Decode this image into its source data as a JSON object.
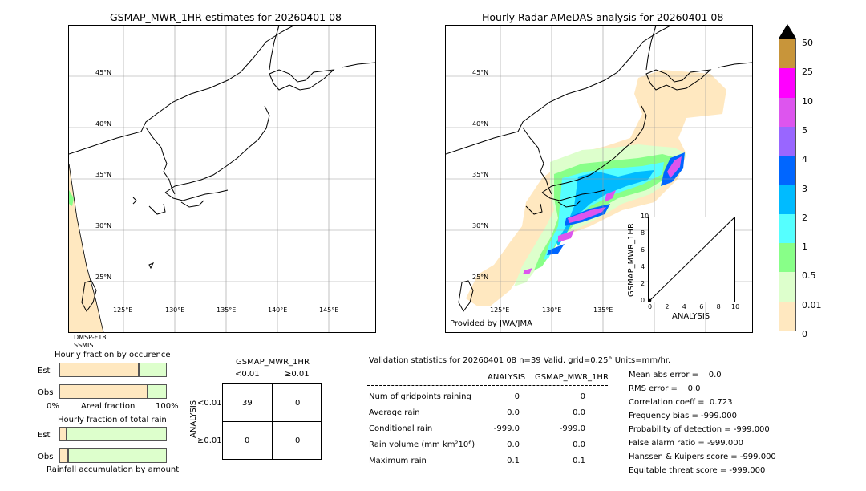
{
  "left_map": {
    "title": "GSMAP_MWR_1HR estimates for 20260401 08",
    "lat_labels": [
      "45°N",
      "40°N",
      "35°N",
      "30°N",
      "25°N"
    ],
    "lon_labels": [
      "125°E",
      "130°E",
      "135°E",
      "140°E",
      "145°E"
    ],
    "sensor_line1": "DMSP-F18",
    "sensor_line2": "SSMIS"
  },
  "right_map": {
    "title": "Hourly Radar-AMeDAS analysis for 20260401 08",
    "lat_labels": [
      "45°N",
      "40°N",
      "35°N",
      "30°N",
      "25°N"
    ],
    "lon_labels": [
      "125°E",
      "130°E",
      "135°E"
    ],
    "credit": "Provided by JWA/JMA"
  },
  "colorbar": {
    "labels": [
      "50",
      "25",
      "10",
      "5",
      "4",
      "3",
      "2",
      "1",
      "0.5",
      "0.01",
      "0"
    ],
    "colors": [
      "#c8953a",
      "#ff00ff",
      "#dd55ee",
      "#9966ff",
      "#0066ff",
      "#00bbff",
      "#55ffff",
      "#88ff88",
      "#ddffcc",
      "#ffe8c0"
    ]
  },
  "chart_data": [
    {
      "type": "scatter",
      "title": "",
      "xlabel": "ANALYSIS",
      "ylabel": "GSMAP_MWR_1HR",
      "xlim": [
        0,
        10
      ],
      "ylim": [
        0,
        10
      ],
      "x_ticks": [
        "0",
        "2",
        "4",
        "6",
        "8",
        "10"
      ],
      "y_ticks": [
        "0",
        "2",
        "4",
        "6",
        "8",
        "10"
      ],
      "reference_line": {
        "x": [
          0,
          10
        ],
        "y": [
          0,
          10
        ]
      },
      "points": [
        {
          "x": 0,
          "y": 0
        }
      ]
    },
    {
      "type": "bar",
      "title": "Hourly fraction by occurence",
      "categories": [
        "Est",
        "Obs"
      ],
      "xlabel": "Areal fraction",
      "x_ticks": [
        "0%",
        "100%"
      ],
      "series": [
        {
          "values": [
            0.74,
            0.82
          ]
        },
        {
          "values": [
            0.26,
            0.18
          ]
        }
      ]
    },
    {
      "type": "bar",
      "title": "Hourly fraction of total rain",
      "categories": [
        "Est",
        "Obs"
      ],
      "xlabel": "Rainfall accumulation by amount",
      "series": [
        {
          "values": [
            0.07,
            0.08
          ]
        },
        {
          "values": [
            0.93,
            0.92
          ]
        }
      ]
    }
  ],
  "contingency": {
    "title": "GSMAP_MWR_1HR",
    "col_headers": [
      "<0.01",
      "≥0.01"
    ],
    "row_axis": "ANALYSIS",
    "row_headers": [
      "<0.01",
      "≥0.01"
    ],
    "cells": [
      [
        "39",
        "0"
      ],
      [
        "0",
        "0"
      ]
    ]
  },
  "validation": {
    "header": "Validation statistics for 20260401 08  n=39 Valid. grid=0.25° Units=mm/hr.",
    "col_analysis": "ANALYSIS",
    "col_gsmap": "GSMAP_MWR_1HR",
    "rows": [
      {
        "label": "Num of gridpoints raining",
        "analysis": "0",
        "gsmap": "0"
      },
      {
        "label": "Average rain",
        "analysis": "0.0",
        "gsmap": "0.0"
      },
      {
        "label": "Conditional rain",
        "analysis": "-999.0",
        "gsmap": "-999.0"
      },
      {
        "label": "Rain volume (mm km²10⁶)",
        "analysis": "0.0",
        "gsmap": "0.0"
      },
      {
        "label": "Maximum rain",
        "analysis": "0.1",
        "gsmap": "0.1"
      }
    ],
    "scores": [
      "Mean abs error =    0.0",
      "RMS error =    0.0",
      "Correlation coeff =  0.723",
      "Frequency bias = -999.000",
      "Probability of detection = -999.000",
      "False alarm ratio = -999.000",
      "Hanssen & Kuipers score = -999.000",
      "Equitable threat score = -999.000"
    ]
  }
}
